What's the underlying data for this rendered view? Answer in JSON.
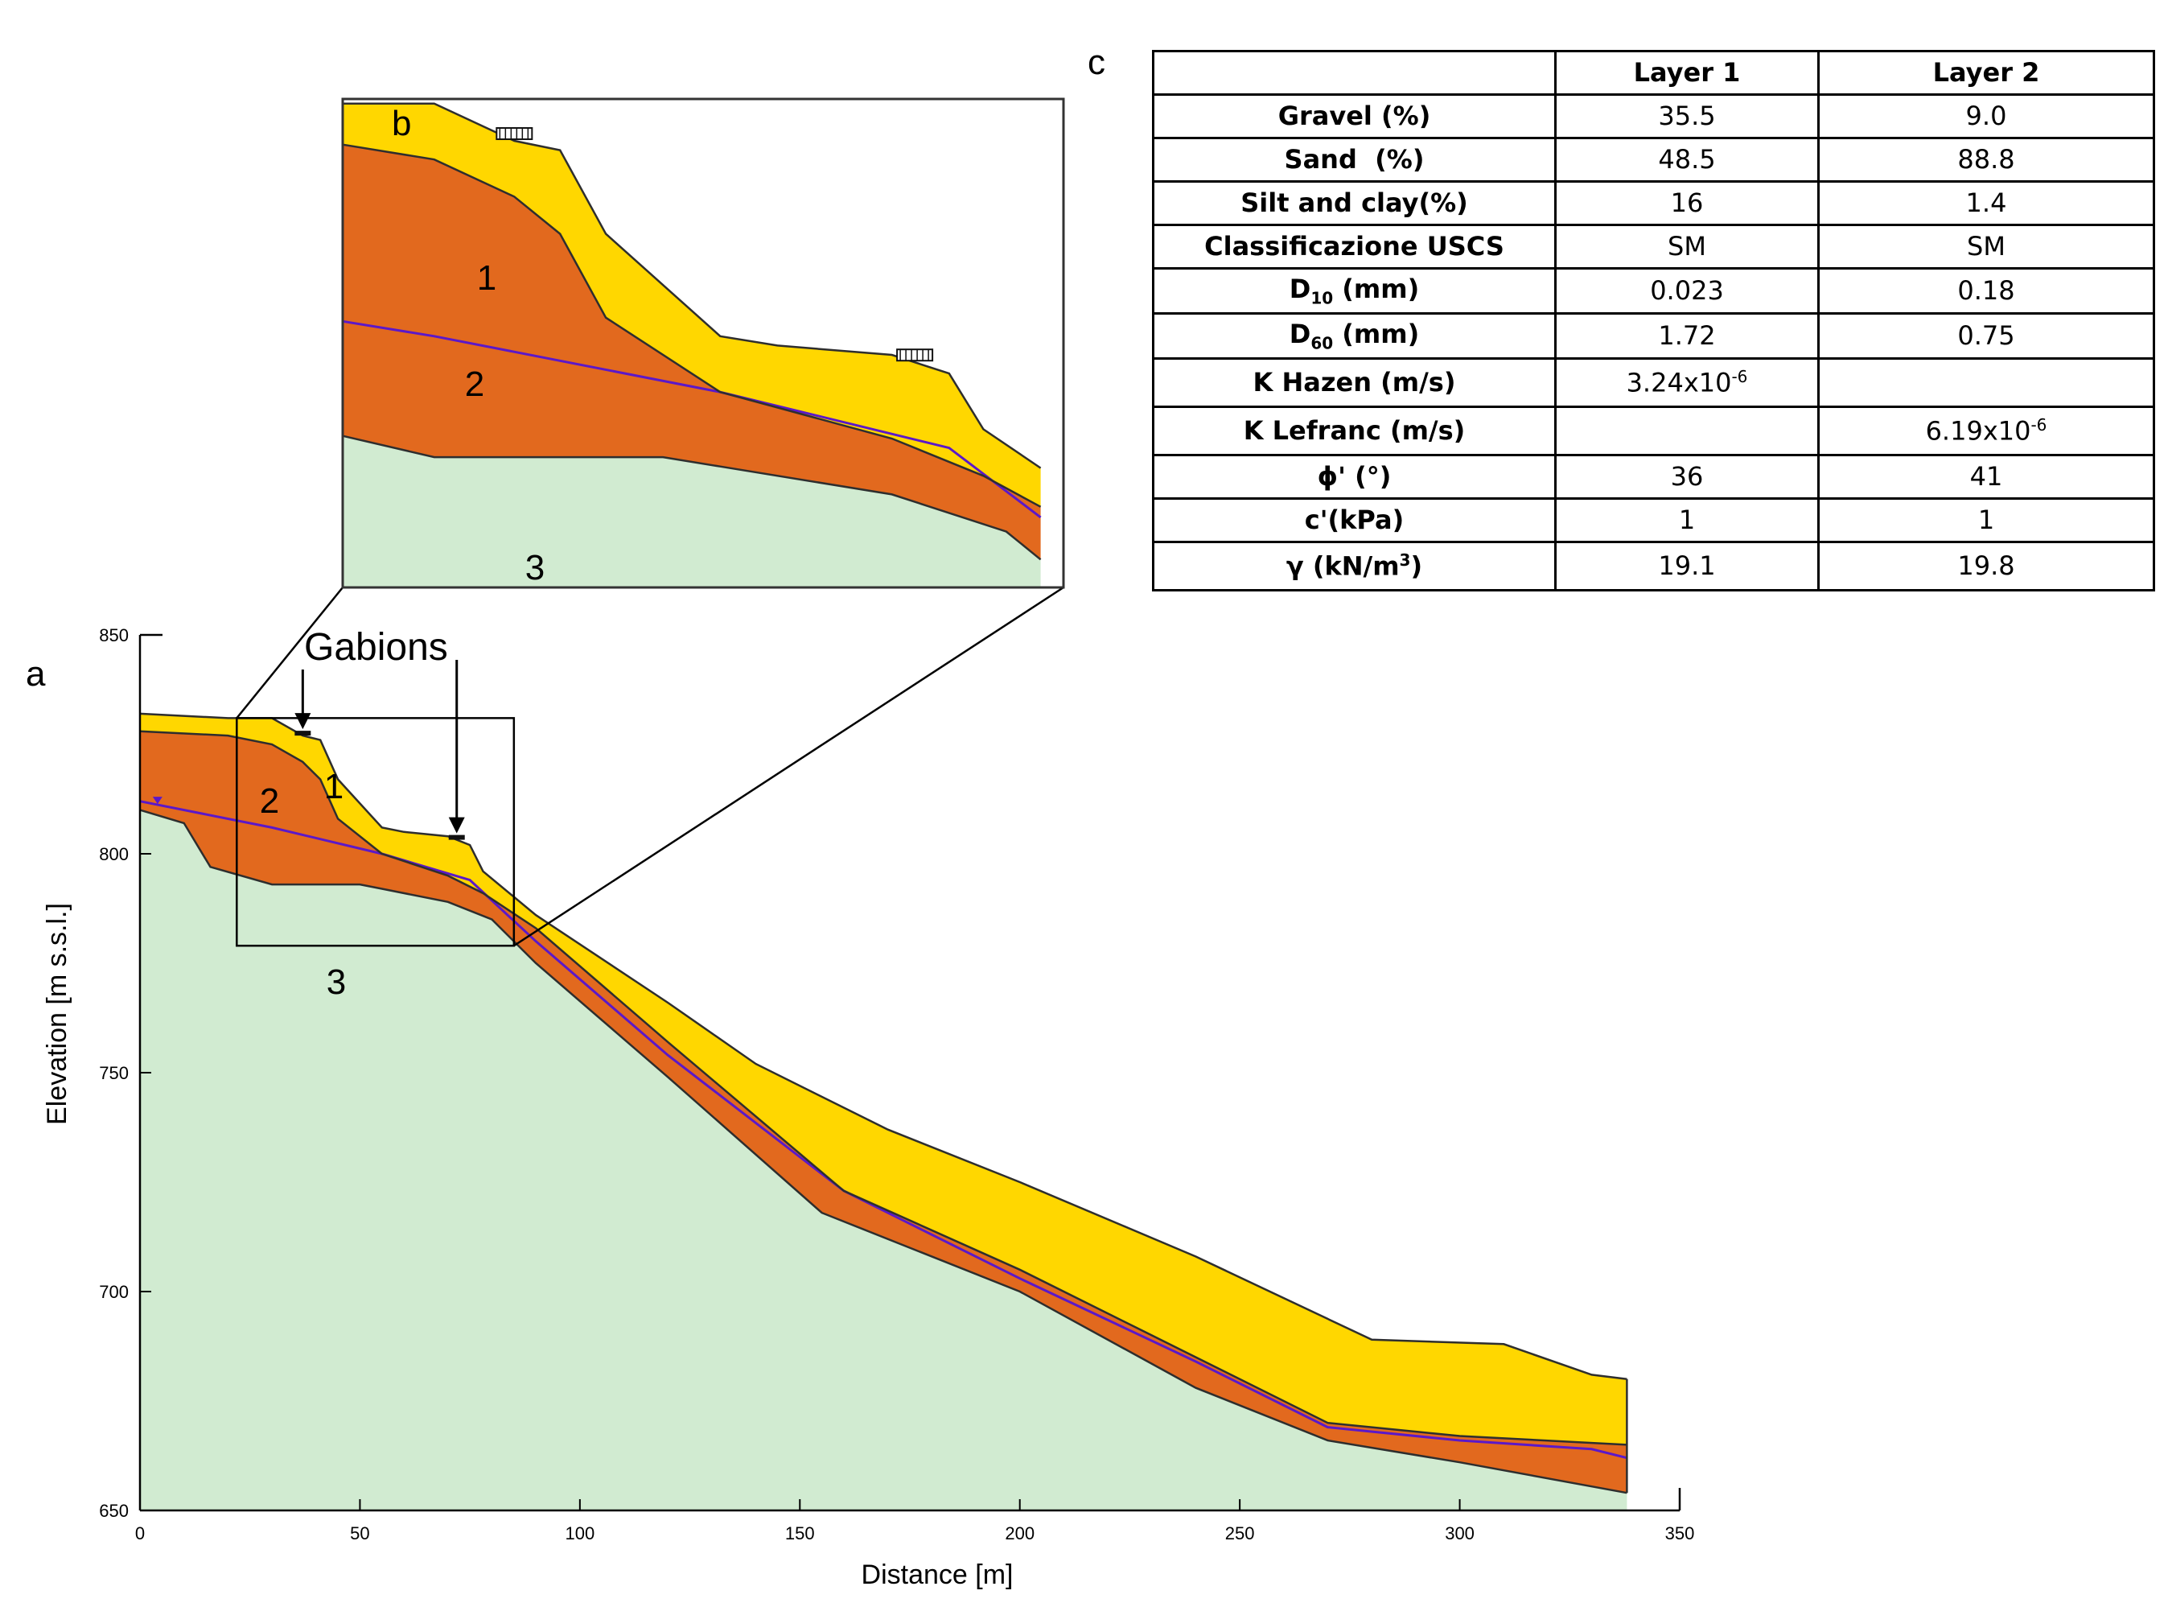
{
  "panel_labels": {
    "a": "a",
    "b": "b",
    "c": "c"
  },
  "annotation": {
    "gabions": "Gabions"
  },
  "layer_labels": {
    "layer1": "1",
    "layer2": "2",
    "layer3": "3"
  },
  "colors": {
    "layer1": "#FFD700",
    "layer2": "#E2691E",
    "layer3": "#D1EBD1",
    "water_table": "#5B18C9",
    "outline": "#2E2E2E"
  },
  "chart_data": {
    "type": "area",
    "title": "",
    "xlabel": "Distance [m]",
    "ylabel": "Elevation [m s.s.l.]",
    "xlim": [
      0,
      350
    ],
    "ylim": [
      650,
      850
    ],
    "x_ticks": [
      0,
      50,
      100,
      150,
      200,
      250,
      300,
      350
    ],
    "y_ticks": [
      650,
      700,
      750,
      800,
      850
    ],
    "grid": false,
    "series": [
      {
        "name": "1",
        "surface": [
          [
            0,
            832
          ],
          [
            20,
            831
          ],
          [
            30,
            831
          ],
          [
            37,
            827
          ],
          [
            41,
            826
          ],
          [
            45,
            817
          ],
          [
            55,
            806
          ],
          [
            60,
            805
          ],
          [
            70,
            804
          ],
          [
            75,
            802
          ],
          [
            78,
            796
          ],
          [
            90,
            786
          ],
          [
            120,
            766
          ],
          [
            140,
            752
          ],
          [
            170,
            737
          ],
          [
            200,
            725
          ],
          [
            240,
            708
          ],
          [
            280,
            689
          ],
          [
            310,
            688
          ],
          [
            330,
            681
          ],
          [
            338,
            680
          ]
        ]
      },
      {
        "name": "2",
        "surface": [
          [
            0,
            828
          ],
          [
            20,
            827
          ],
          [
            30,
            825
          ],
          [
            37,
            821
          ],
          [
            41,
            817
          ],
          [
            45,
            808
          ],
          [
            55,
            800
          ],
          [
            70,
            795
          ],
          [
            78,
            791
          ],
          [
            90,
            783
          ],
          [
            120,
            757
          ],
          [
            160,
            723
          ],
          [
            200,
            705
          ],
          [
            240,
            685
          ],
          [
            270,
            670
          ],
          [
            300,
            667
          ],
          [
            338,
            665
          ]
        ]
      },
      {
        "name": "3",
        "surface": [
          [
            0,
            810
          ],
          [
            10,
            807
          ],
          [
            16,
            797
          ],
          [
            30,
            793
          ],
          [
            50,
            793
          ],
          [
            55,
            792
          ],
          [
            70,
            789
          ],
          [
            80,
            785
          ],
          [
            90,
            775
          ],
          [
            120,
            749
          ],
          [
            155,
            718
          ],
          [
            200,
            700
          ],
          [
            240,
            678
          ],
          [
            270,
            666
          ],
          [
            300,
            661
          ],
          [
            338,
            654
          ]
        ]
      }
    ],
    "water_table": [
      [
        0,
        812
      ],
      [
        30,
        806
      ],
      [
        55,
        800
      ],
      [
        75,
        794
      ],
      [
        90,
        780
      ],
      [
        120,
        754
      ],
      [
        160,
        723
      ],
      [
        200,
        703
      ],
      [
        240,
        684
      ],
      [
        270,
        669
      ],
      [
        300,
        666
      ],
      [
        330,
        664
      ],
      [
        338,
        662
      ]
    ],
    "gabions_at_x": [
      37,
      72
    ],
    "zoom_box": {
      "x": [
        22,
        85
      ],
      "y": [
        779,
        831
      ]
    }
  },
  "table": {
    "headers": [
      "",
      "Layer 1",
      "Layer 2"
    ],
    "rows": [
      {
        "label": "Gravel (%)",
        "layer1": "35.5",
        "layer2": "9.0"
      },
      {
        "label": "Sand  (%)",
        "layer1": "48.5",
        "layer2": "88.8"
      },
      {
        "label": "Silt and clay(%)",
        "layer1": "16",
        "layer2": "1.4"
      },
      {
        "label": "Classificazione USCS",
        "layer1": "SM",
        "layer2": "SM"
      },
      {
        "label_main": "D",
        "label_sub": "10",
        "label_rest": " (mm)",
        "layer1": "0.023",
        "layer2": "0.18"
      },
      {
        "label_main": "D",
        "label_sub": "60",
        "label_rest": " (mm)",
        "layer1": "1.72",
        "layer2": "0.75"
      },
      {
        "label": "K Hazen (m/s)",
        "layer1_base": "3.24x10",
        "layer1_exp": "-6",
        "layer2": ""
      },
      {
        "label": "K Lefranc (m/s)",
        "layer1": "",
        "layer2_base": "6.19x10",
        "layer2_exp": "-6"
      },
      {
        "label": "ϕ' (°)",
        "layer1": "36",
        "layer2": "41"
      },
      {
        "label": "c'(kPa)",
        "layer1": "1",
        "layer2": "1"
      },
      {
        "label_main": "γ (kN/m",
        "label_sup": "3",
        "label_rest": ")",
        "layer1": "19.1",
        "layer2": "19.8"
      }
    ]
  }
}
